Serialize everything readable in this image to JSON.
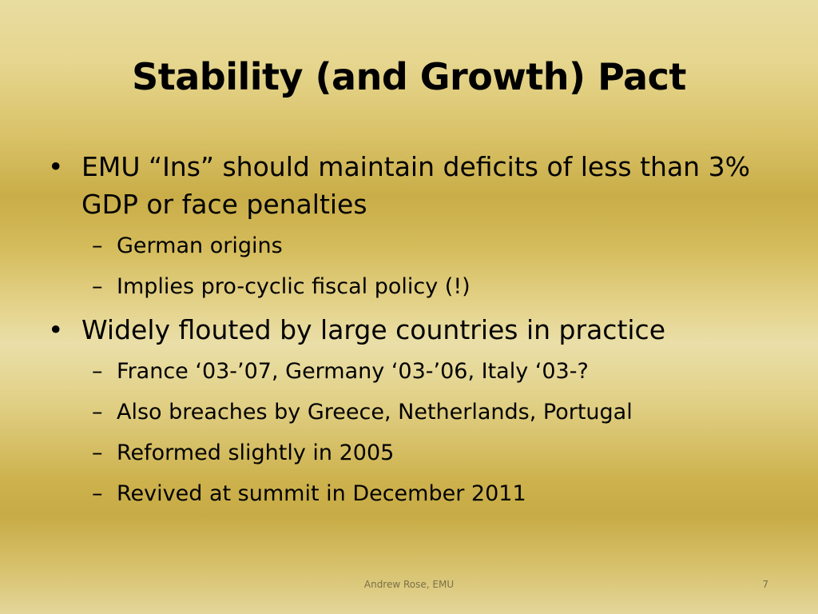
{
  "slide": {
    "title": "Stability (and Growth) Pact",
    "bullet_glyph": "•",
    "dash_glyph": "–",
    "items": [
      {
        "text": "EMU “Ins” should maintain deficits of less than 3% GDP or face penalties",
        "sub": [
          "German origins",
          "Implies pro-cyclic fiscal policy (!)"
        ]
      },
      {
        "text": "Widely flouted by large countries in practice",
        "sub": [
          "France ‘03-’07, Germany ‘03-’06, Italy ‘03-?",
          "Also breaches by Greece, Netherlands, Portugal",
          "Reformed slightly in 2005",
          "Revived at summit in December 2011"
        ]
      }
    ],
    "footer": "Andrew Rose, EMU",
    "page_number": "7"
  }
}
